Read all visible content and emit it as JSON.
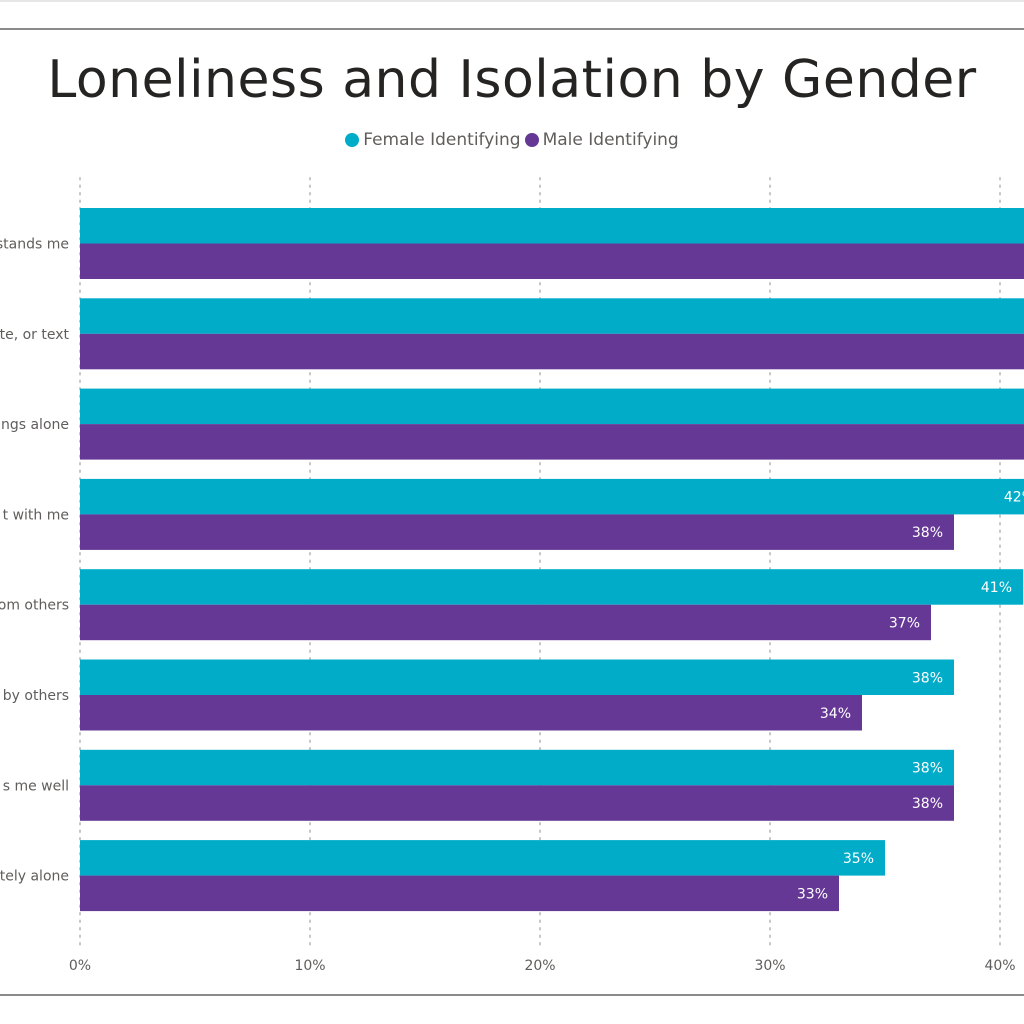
{
  "chart_data": {
    "type": "bar",
    "orientation": "horizontal",
    "title": "Loneliness and Isolation by Gender",
    "categories": [
      "...stands me",
      "...te, or text",
      "...ngs alone",
      "...t with me",
      "...om others",
      "... by others",
      "...s me well",
      "...tely alone"
    ],
    "category_labels_visible": [
      "stands me",
      "te, or text",
      "ngs alone",
      "t with me",
      "om others",
      "by others",
      "s me well",
      "tely alone"
    ],
    "series": [
      {
        "name": "Female Identifying",
        "color": "#00acc8",
        "values": [
          46,
          46,
          45,
          42,
          41,
          38,
          38,
          35
        ],
        "labels": [
          "",
          "",
          "",
          "42%",
          "41%",
          "38%",
          "38%",
          "35%"
        ]
      },
      {
        "name": "Male Identifying",
        "color": "#653896",
        "values": [
          44,
          44,
          43,
          38,
          37,
          34,
          38,
          33
        ],
        "labels": [
          "",
          "",
          "",
          "38%",
          "37%",
          "34%",
          "38%",
          "33%"
        ]
      }
    ],
    "xaxis": {
      "ticks": [
        0,
        10,
        20,
        30,
        40
      ],
      "tick_labels": [
        "0%",
        "10%",
        "20%",
        "30%",
        "40%"
      ],
      "xlim": [
        0,
        41
      ]
    },
    "grid": true,
    "legend_position": "top-center"
  }
}
